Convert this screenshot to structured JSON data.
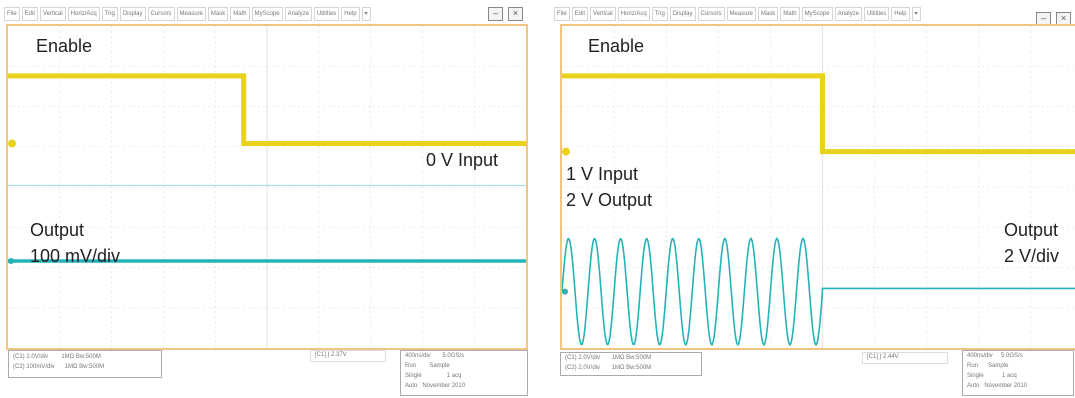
{
  "colors": {
    "enable_trace": "#e8d21b",
    "output_trace": "#26b3b7",
    "grid": "#e6e6e6",
    "screen_border": "#f2c47f"
  },
  "left": {
    "menu": [
      "File",
      "Edit",
      "Vertical",
      "Horiz/Acq",
      "Trig",
      "Display",
      "Cursors",
      "Measure",
      "Mask",
      "Math",
      "MyScope",
      "Analyze",
      "Utilities",
      "Help"
    ],
    "labels": {
      "enable": "Enable",
      "input": "0 V Input",
      "output_line1": "Output",
      "output_line2": "100 mV/div"
    },
    "traces": {
      "enable_high_level": 0.155,
      "enable_low_level": 0.365,
      "enable_transition": 0.455,
      "output_level": 0.73,
      "input_level": 0.495
    }
  },
  "right": {
    "menu": [
      "File",
      "Edit",
      "Vertical",
      "Horiz/Acq",
      "Trig",
      "Display",
      "Cursors",
      "Measure",
      "Mask",
      "Math",
      "MyScope",
      "Analyze",
      "Utilities",
      "Help"
    ],
    "labels": {
      "enable": "Enable",
      "input_output_line1": "1 V Input",
      "input_output_line2": "2 V Output",
      "output_line1": "Output",
      "output_line2": "2 V/div"
    },
    "traces": {
      "enable_high_level": 0.155,
      "enable_low_level": 0.39,
      "enable_transition": 0.5,
      "output_baseline": 0.815,
      "sine_cycles": 10,
      "sine_top": 0.66,
      "sine_bottom": 0.99
    }
  },
  "icons": [
    "minimize-icon",
    "close-icon",
    "dropdown-icon"
  ]
}
